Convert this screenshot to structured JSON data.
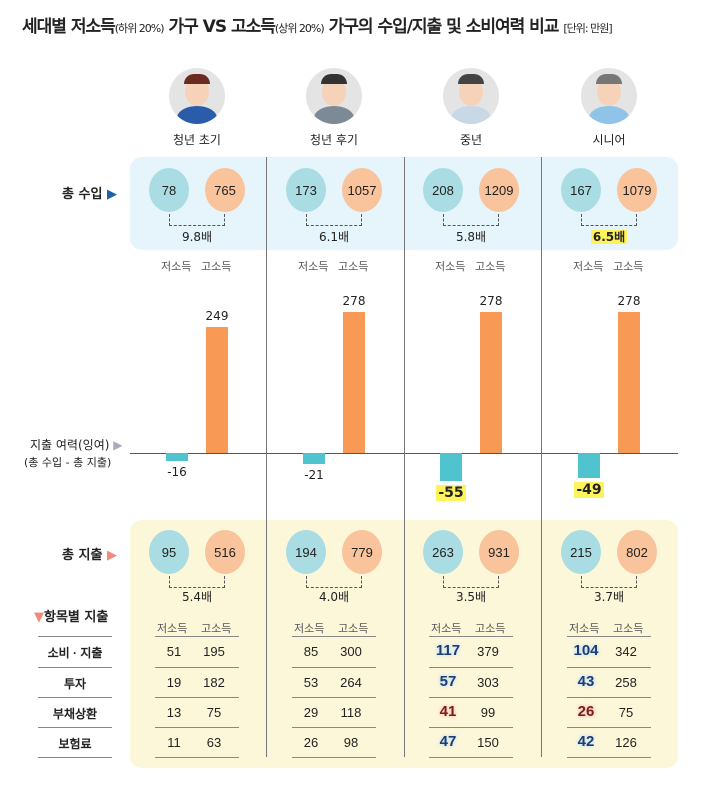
{
  "title": {
    "main1": "세대별 저소득",
    "sub1": "(하위 20%)",
    "main2": " 가구 VS 고소득",
    "sub2": "(상위 20%)",
    "main3": " 가구의 수입/지출 및 소비여력 비교 ",
    "unit": "[단위: 만원]"
  },
  "labels": {
    "income": "총 수입",
    "income_marker": "▶",
    "surplus": "지출 여력(잉여)",
    "surplus_marker": "▶",
    "surplus_sub": "(총 수입 - 총 지출)",
    "expense": "총 지출",
    "expense_marker": "▶",
    "breakdown": "항목별 지출",
    "breakdown_marker": "▼",
    "low": "저소득",
    "high": "고소득"
  },
  "colors": {
    "low": "#a9dde3",
    "high": "#f9c39b",
    "bar_low": "#4fc4cf",
    "bar_high": "#f89a55",
    "income_bg": "#e6f4fb",
    "expense_bg": "#fdf7da",
    "highlight": "#fff35c"
  },
  "categories": [
    "소비 · 지출",
    "투자",
    "부채상환",
    "보험료"
  ],
  "groups": [
    {
      "name": "청년 초기",
      "avatar": "young-woman-icon",
      "income": {
        "low": 78,
        "high": 765,
        "ratio": "9.8배",
        "ratio_hl": false
      },
      "surplus": {
        "low": -16,
        "high": 249,
        "low_hl": false
      },
      "expense": {
        "low": 95,
        "high": 516,
        "ratio": "5.4배"
      },
      "items": [
        [
          51,
          195
        ],
        [
          19,
          182
        ],
        [
          13,
          75
        ],
        [
          11,
          63
        ]
      ],
      "hl": [
        null,
        null,
        null,
        null
      ]
    },
    {
      "name": "청년 후기",
      "avatar": "young-man-suit-icon",
      "income": {
        "low": 173,
        "high": 1057,
        "ratio": "6.1배",
        "ratio_hl": false
      },
      "surplus": {
        "low": -21,
        "high": 278,
        "low_hl": false
      },
      "expense": {
        "low": 194,
        "high": 779,
        "ratio": "4.0배"
      },
      "items": [
        [
          85,
          300
        ],
        [
          53,
          264
        ],
        [
          29,
          118
        ],
        [
          26,
          98
        ]
      ],
      "hl": [
        null,
        null,
        null,
        null
      ]
    },
    {
      "name": "중년",
      "avatar": "middle-aged-woman-icon",
      "income": {
        "low": 208,
        "high": 1209,
        "ratio": "5.8배",
        "ratio_hl": false
      },
      "surplus": {
        "low": -55,
        "high": 278,
        "low_hl": true
      },
      "expense": {
        "low": 263,
        "high": 931,
        "ratio": "3.5배"
      },
      "items": [
        [
          117,
          379
        ],
        [
          57,
          303
        ],
        [
          41,
          99
        ],
        [
          47,
          150
        ]
      ],
      "hl": [
        "blue",
        "blue",
        "red",
        "blue"
      ]
    },
    {
      "name": "시니어",
      "avatar": "senior-man-icon",
      "income": {
        "low": 167,
        "high": 1079,
        "ratio": "6.5배",
        "ratio_hl": true
      },
      "surplus": {
        "low": -49,
        "high": 278,
        "low_hl": true
      },
      "expense": {
        "low": 215,
        "high": 802,
        "ratio": "3.7배"
      },
      "items": [
        [
          104,
          342
        ],
        [
          43,
          258
        ],
        [
          26,
          75
        ],
        [
          42,
          126
        ]
      ],
      "hl": [
        "blue",
        "blue",
        "red",
        "blue"
      ]
    }
  ],
  "chart_data": {
    "type": "bar",
    "title": "",
    "categories": [
      "청년 초기",
      "청년 후기",
      "중년",
      "시니어"
    ],
    "series": [
      {
        "name": "저소득",
        "values": [
          -16,
          -21,
          -55,
          -49
        ]
      },
      {
        "name": "고소득",
        "values": [
          249,
          278,
          278,
          278
        ]
      }
    ],
    "ylabel": "지출 여력(잉여)",
    "grid": false
  }
}
